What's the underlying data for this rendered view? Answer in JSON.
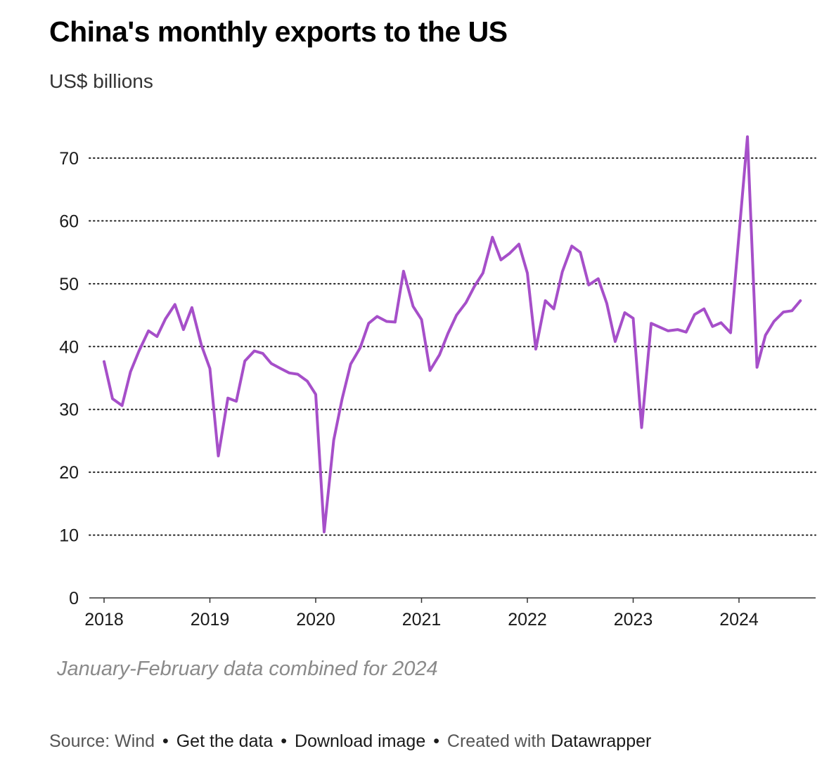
{
  "chart_data": {
    "type": "line",
    "title": "China's monthly exports to the US",
    "subtitle": "US$ billions",
    "ylabel": "US$ billions",
    "xlabel": "",
    "ylim": [
      0,
      70
    ],
    "yticks": [
      0,
      10,
      20,
      30,
      40,
      50,
      60,
      70
    ],
    "xlim": [
      2018,
      2024.77
    ],
    "xticks": [
      "2018",
      "2019",
      "2020",
      "2021",
      "2022",
      "2023",
      "2024"
    ],
    "grid": "horizontal dotted",
    "color": "#a64fc9",
    "series": [
      {
        "name": "Exports to the US",
        "points": [
          [
            2018.0,
            37.6
          ],
          [
            2018.08,
            31.7
          ],
          [
            2018.17,
            30.6
          ],
          [
            2018.25,
            36.0
          ],
          [
            2018.33,
            39.3
          ],
          [
            2018.42,
            42.5
          ],
          [
            2018.5,
            41.6
          ],
          [
            2018.58,
            44.4
          ],
          [
            2018.67,
            46.7
          ],
          [
            2018.75,
            42.7
          ],
          [
            2018.83,
            46.2
          ],
          [
            2018.92,
            40.2
          ],
          [
            2019.0,
            36.5
          ],
          [
            2019.08,
            22.6
          ],
          [
            2019.17,
            31.8
          ],
          [
            2019.25,
            31.3
          ],
          [
            2019.33,
            37.7
          ],
          [
            2019.42,
            39.3
          ],
          [
            2019.5,
            38.9
          ],
          [
            2019.58,
            37.3
          ],
          [
            2019.67,
            36.5
          ],
          [
            2019.75,
            35.8
          ],
          [
            2019.83,
            35.6
          ],
          [
            2019.92,
            34.5
          ],
          [
            2020.0,
            32.4
          ],
          [
            2020.08,
            10.5
          ],
          [
            2020.17,
            25.1
          ],
          [
            2020.25,
            31.7
          ],
          [
            2020.33,
            37.2
          ],
          [
            2020.42,
            39.8
          ],
          [
            2020.5,
            43.7
          ],
          [
            2020.58,
            44.8
          ],
          [
            2020.67,
            44.0
          ],
          [
            2020.75,
            43.9
          ],
          [
            2020.83,
            52.0
          ],
          [
            2020.92,
            46.4
          ],
          [
            2021.0,
            44.3
          ],
          [
            2021.08,
            36.2
          ],
          [
            2021.17,
            38.7
          ],
          [
            2021.25,
            42.1
          ],
          [
            2021.33,
            45.0
          ],
          [
            2021.42,
            47.0
          ],
          [
            2021.5,
            49.6
          ],
          [
            2021.58,
            51.7
          ],
          [
            2021.67,
            57.4
          ],
          [
            2021.75,
            53.8
          ],
          [
            2021.83,
            54.8
          ],
          [
            2021.92,
            56.3
          ],
          [
            2022.0,
            51.7
          ],
          [
            2022.08,
            39.6
          ],
          [
            2022.17,
            47.3
          ],
          [
            2022.25,
            46.0
          ],
          [
            2022.33,
            51.9
          ],
          [
            2022.42,
            56.0
          ],
          [
            2022.5,
            55.0
          ],
          [
            2022.58,
            49.8
          ],
          [
            2022.67,
            50.8
          ],
          [
            2022.75,
            46.9
          ],
          [
            2022.83,
            40.8
          ],
          [
            2022.92,
            45.4
          ],
          [
            2023.0,
            44.5
          ],
          [
            2023.08,
            27.1
          ],
          [
            2023.17,
            43.7
          ],
          [
            2023.25,
            43.1
          ],
          [
            2023.33,
            42.5
          ],
          [
            2023.42,
            42.7
          ],
          [
            2023.5,
            42.3
          ],
          [
            2023.58,
            45.1
          ],
          [
            2023.67,
            46.0
          ],
          [
            2023.75,
            43.2
          ],
          [
            2023.83,
            43.8
          ],
          [
            2023.92,
            42.2
          ],
          [
            2024.0,
            57.8
          ],
          [
            2024.08,
            73.4
          ],
          [
            2024.17,
            36.7
          ],
          [
            2024.25,
            41.8
          ],
          [
            2024.33,
            44.0
          ],
          [
            2024.42,
            45.5
          ],
          [
            2024.5,
            45.7
          ],
          [
            2024.58,
            47.3
          ]
        ]
      }
    ],
    "annotation": "January-February data combined for 2024"
  },
  "footer": {
    "source": "Source: Wind",
    "separator": "•",
    "get_data": "Get the data",
    "download": "Download image",
    "created_with": "Created with",
    "brand": "Datawrapper"
  }
}
